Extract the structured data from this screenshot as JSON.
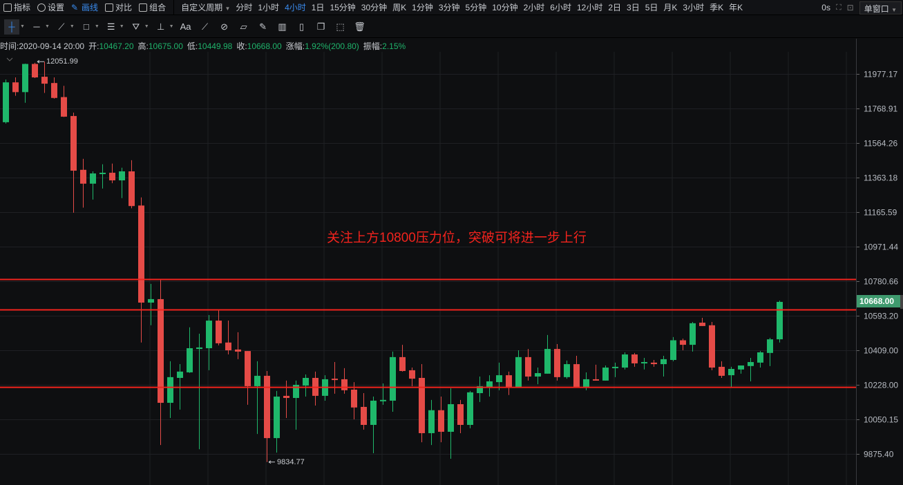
{
  "toolbar": {
    "items": [
      {
        "label": "指标",
        "icon": "chart-icon"
      },
      {
        "label": "设置",
        "icon": "gear-icon"
      },
      {
        "label": "画线",
        "icon": "pen-icon",
        "active": true
      },
      {
        "label": "对比",
        "icon": "compare-icon"
      },
      {
        "label": "组合",
        "icon": "layout-icon"
      }
    ],
    "custom_period": "自定义周期",
    "periods": [
      "分时",
      "1小时",
      "4小时",
      "1日",
      "15分钟",
      "30分钟",
      "周K",
      "1分钟",
      "3分钟",
      "5分钟",
      "10分钟",
      "2小时",
      "6小时",
      "12小时",
      "2日",
      "3日",
      "5日",
      "月K",
      "3小时",
      "季K",
      "年K"
    ],
    "active_period": "4小时",
    "timer": "0s",
    "window_mode": "单窗口"
  },
  "draw_tools": [
    "crosshair",
    "horizontal-line",
    "trend-line",
    "rectangle",
    "parallel-lines",
    "pattern",
    "measure",
    "text",
    "ruler-a",
    "magnet",
    "ruler",
    "brush",
    "candles",
    "lock",
    "copy",
    "screenshot",
    "trash"
  ],
  "draw_text_label": "Aa",
  "info": {
    "time_label": "时间:",
    "time": "2020-09-14 20:00",
    "open_label": "开:",
    "open": "10467.20",
    "high_label": "高:",
    "high": "10675.00",
    "low_label": "低:",
    "low": "10449.98",
    "close_label": "收:",
    "close": "10668.00",
    "change_label": "涨幅:",
    "change": "1.92%(200.80)",
    "amp_label": "振幅:",
    "amp": "2.15%"
  },
  "annotation": "关注上方10800压力位，突破可将进一步上行",
  "colors": {
    "up": "#1fb86b",
    "down": "#e54b47",
    "line": "#f2231d",
    "price_tag": "#3f9a6e",
    "active": "#3a8cf0"
  },
  "chart_data": {
    "type": "candlestick",
    "y_scale": "log",
    "grid": true,
    "y_ticks": [
      11977.17,
      11768.91,
      11564.26,
      11363.18,
      11165.59,
      10971.44,
      10780.66,
      10593.2,
      10409.0,
      10228.0,
      10050.15,
      9875.4
    ],
    "y_tick_labels": [
      "11977.17",
      "11768.91",
      "11564.26",
      "11363.18",
      "11165.59",
      "10971.44",
      "10780.66",
      "10593.20",
      "10409.00",
      "10228.00",
      "10050.15",
      "9875.40"
    ],
    "current_price": "10668.00",
    "max_label": "12051.99",
    "min_label": "9834.77",
    "horizontal_lines": [
      10790,
      10625,
      10215
    ],
    "ohlc": [
      [
        11687,
        11943,
        11679,
        11926
      ],
      [
        11926,
        11956,
        11845,
        11867
      ],
      [
        11867,
        12040,
        11803,
        12038
      ],
      [
        12038,
        12045,
        11952,
        11956
      ],
      [
        11960,
        12051.99,
        11862,
        11918
      ],
      [
        11922,
        11956,
        11828,
        11832
      ],
      [
        11837,
        11905,
        11718,
        11720
      ],
      [
        11724,
        11744,
        11162,
        11403
      ],
      [
        11408,
        11472,
        11191,
        11328
      ],
      [
        11328,
        11399,
        11237,
        11387
      ],
      [
        11383,
        11440,
        11300,
        11391
      ],
      [
        11391,
        11444,
        11331,
        11347
      ],
      [
        11347,
        11420,
        11245,
        11399
      ],
      [
        11399,
        11464,
        11187,
        11200
      ],
      [
        11203,
        11249,
        10450,
        10664
      ],
      [
        10664,
        10766,
        10542,
        10683
      ],
      [
        10683,
        10788,
        9920,
        10135
      ],
      [
        10135,
        10351,
        10057,
        10268
      ],
      [
        10264,
        10336,
        10100,
        10297
      ],
      [
        10293,
        10531,
        10290,
        10420
      ],
      [
        10416,
        10497,
        9899,
        10424
      ],
      [
        10420,
        10597,
        10304,
        10567
      ],
      [
        10567,
        10627,
        10435,
        10446
      ],
      [
        10450,
        10567,
        10387,
        10409
      ],
      [
        10413,
        10505,
        10362,
        10402
      ],
      [
        10405,
        10405,
        10125,
        10221
      ],
      [
        10221,
        10351,
        9976,
        10275
      ],
      [
        10275,
        10300,
        9834.77,
        9955
      ],
      [
        9955,
        10196,
        9882,
        10167
      ],
      [
        10171,
        10250,
        10057,
        10160
      ],
      [
        10160,
        10250,
        9998,
        10228
      ],
      [
        10224,
        10282,
        10167,
        10264
      ],
      [
        10264,
        10297,
        10121,
        10171
      ],
      [
        10171,
        10278,
        10146,
        10257
      ],
      [
        10260,
        10347,
        10182,
        10253
      ],
      [
        10257,
        10315,
        10182,
        10200
      ],
      [
        10203,
        10242,
        10050,
        10111
      ],
      [
        10114,
        10185,
        9998,
        10022
      ],
      [
        10022,
        10167,
        9879,
        10146
      ],
      [
        10146,
        10235,
        10125,
        10150
      ],
      [
        10146,
        10402,
        10089,
        10373
      ],
      [
        10373,
        10438,
        10297,
        10300
      ],
      [
        10304,
        10318,
        10221,
        10260
      ],
      [
        10264,
        10336,
        9934,
        9980
      ],
      [
        9980,
        10150,
        9920,
        10097
      ],
      [
        10097,
        10167,
        9934,
        9987
      ],
      [
        9987,
        10210,
        9851,
        10128
      ],
      [
        10128,
        10150,
        9980,
        10022
      ],
      [
        10022,
        10196,
        10005,
        10189
      ],
      [
        10185,
        10271,
        10139,
        10221
      ],
      [
        10217,
        10278,
        10167,
        10246
      ],
      [
        10242,
        10344,
        10200,
        10278
      ],
      [
        10278,
        10297,
        10175,
        10217
      ],
      [
        10217,
        10409,
        10214,
        10373
      ],
      [
        10373,
        10416,
        10250,
        10271
      ],
      [
        10271,
        10318,
        10231,
        10289
      ],
      [
        10286,
        10490,
        10286,
        10416
      ],
      [
        10416,
        10442,
        10250,
        10268
      ],
      [
        10268,
        10355,
        10260,
        10336
      ],
      [
        10336,
        10380,
        10214,
        10217
      ],
      [
        10217,
        10293,
        10200,
        10257
      ],
      [
        10257,
        10333,
        10250,
        10250
      ],
      [
        10250,
        10329,
        10250,
        10318
      ],
      [
        10315,
        10344,
        10268,
        10322
      ],
      [
        10318,
        10398,
        10308,
        10387
      ],
      [
        10387,
        10395,
        10322,
        10340
      ],
      [
        10340,
        10369,
        10308,
        10347
      ],
      [
        10344,
        10358,
        10322,
        10336
      ],
      [
        10336,
        10380,
        10271,
        10362
      ],
      [
        10358,
        10479,
        10351,
        10462
      ],
      [
        10462,
        10471,
        10409,
        10438
      ],
      [
        10438,
        10560,
        10402,
        10553
      ],
      [
        10556,
        10582,
        10538,
        10538
      ],
      [
        10542,
        10560,
        10304,
        10318
      ],
      [
        10322,
        10351,
        10264,
        10275
      ],
      [
        10278,
        10322,
        10214,
        10311
      ],
      [
        10308,
        10329,
        10286,
        10329
      ],
      [
        10326,
        10369,
        10246,
        10347
      ],
      [
        10344,
        10405,
        10318,
        10398
      ],
      [
        10395,
        10475,
        10326,
        10467
      ],
      [
        10467.2,
        10675.0,
        10449.98,
        10668.0
      ]
    ]
  }
}
